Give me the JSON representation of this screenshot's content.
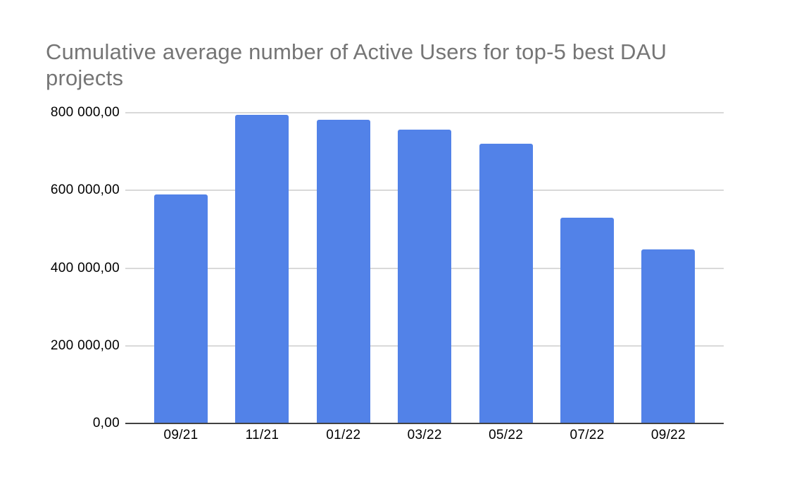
{
  "chart": {
    "title": "Cumulative average number of Active Users for top-5 best DAU projects"
  },
  "chart_data": {
    "type": "bar",
    "title": "Cumulative average number of Active Users for top-5 best DAU projects",
    "categories": [
      "09/21",
      "11/21",
      "01/22",
      "03/22",
      "05/22",
      "07/22",
      "09/22"
    ],
    "values": [
      590000,
      795000,
      782000,
      757000,
      720000,
      529000,
      449000
    ],
    "xlabel": "",
    "ylabel": "",
    "ylim": [
      0,
      800000
    ],
    "y_ticks": [
      {
        "value": 0,
        "label": "0,00"
      },
      {
        "value": 200000,
        "label": "200 000,00"
      },
      {
        "value": 400000,
        "label": "400 000,00"
      },
      {
        "value": 600000,
        "label": "600 000,00"
      },
      {
        "value": 800000,
        "label": "800 000,00"
      }
    ],
    "grid": true,
    "legend": "none"
  },
  "colors": {
    "bar": "#5282e8",
    "title_text": "#757575",
    "axis_label_text": "#000000",
    "gridline": "#d9d9d9",
    "axis_line": "#424242",
    "background": "#ffffff"
  }
}
